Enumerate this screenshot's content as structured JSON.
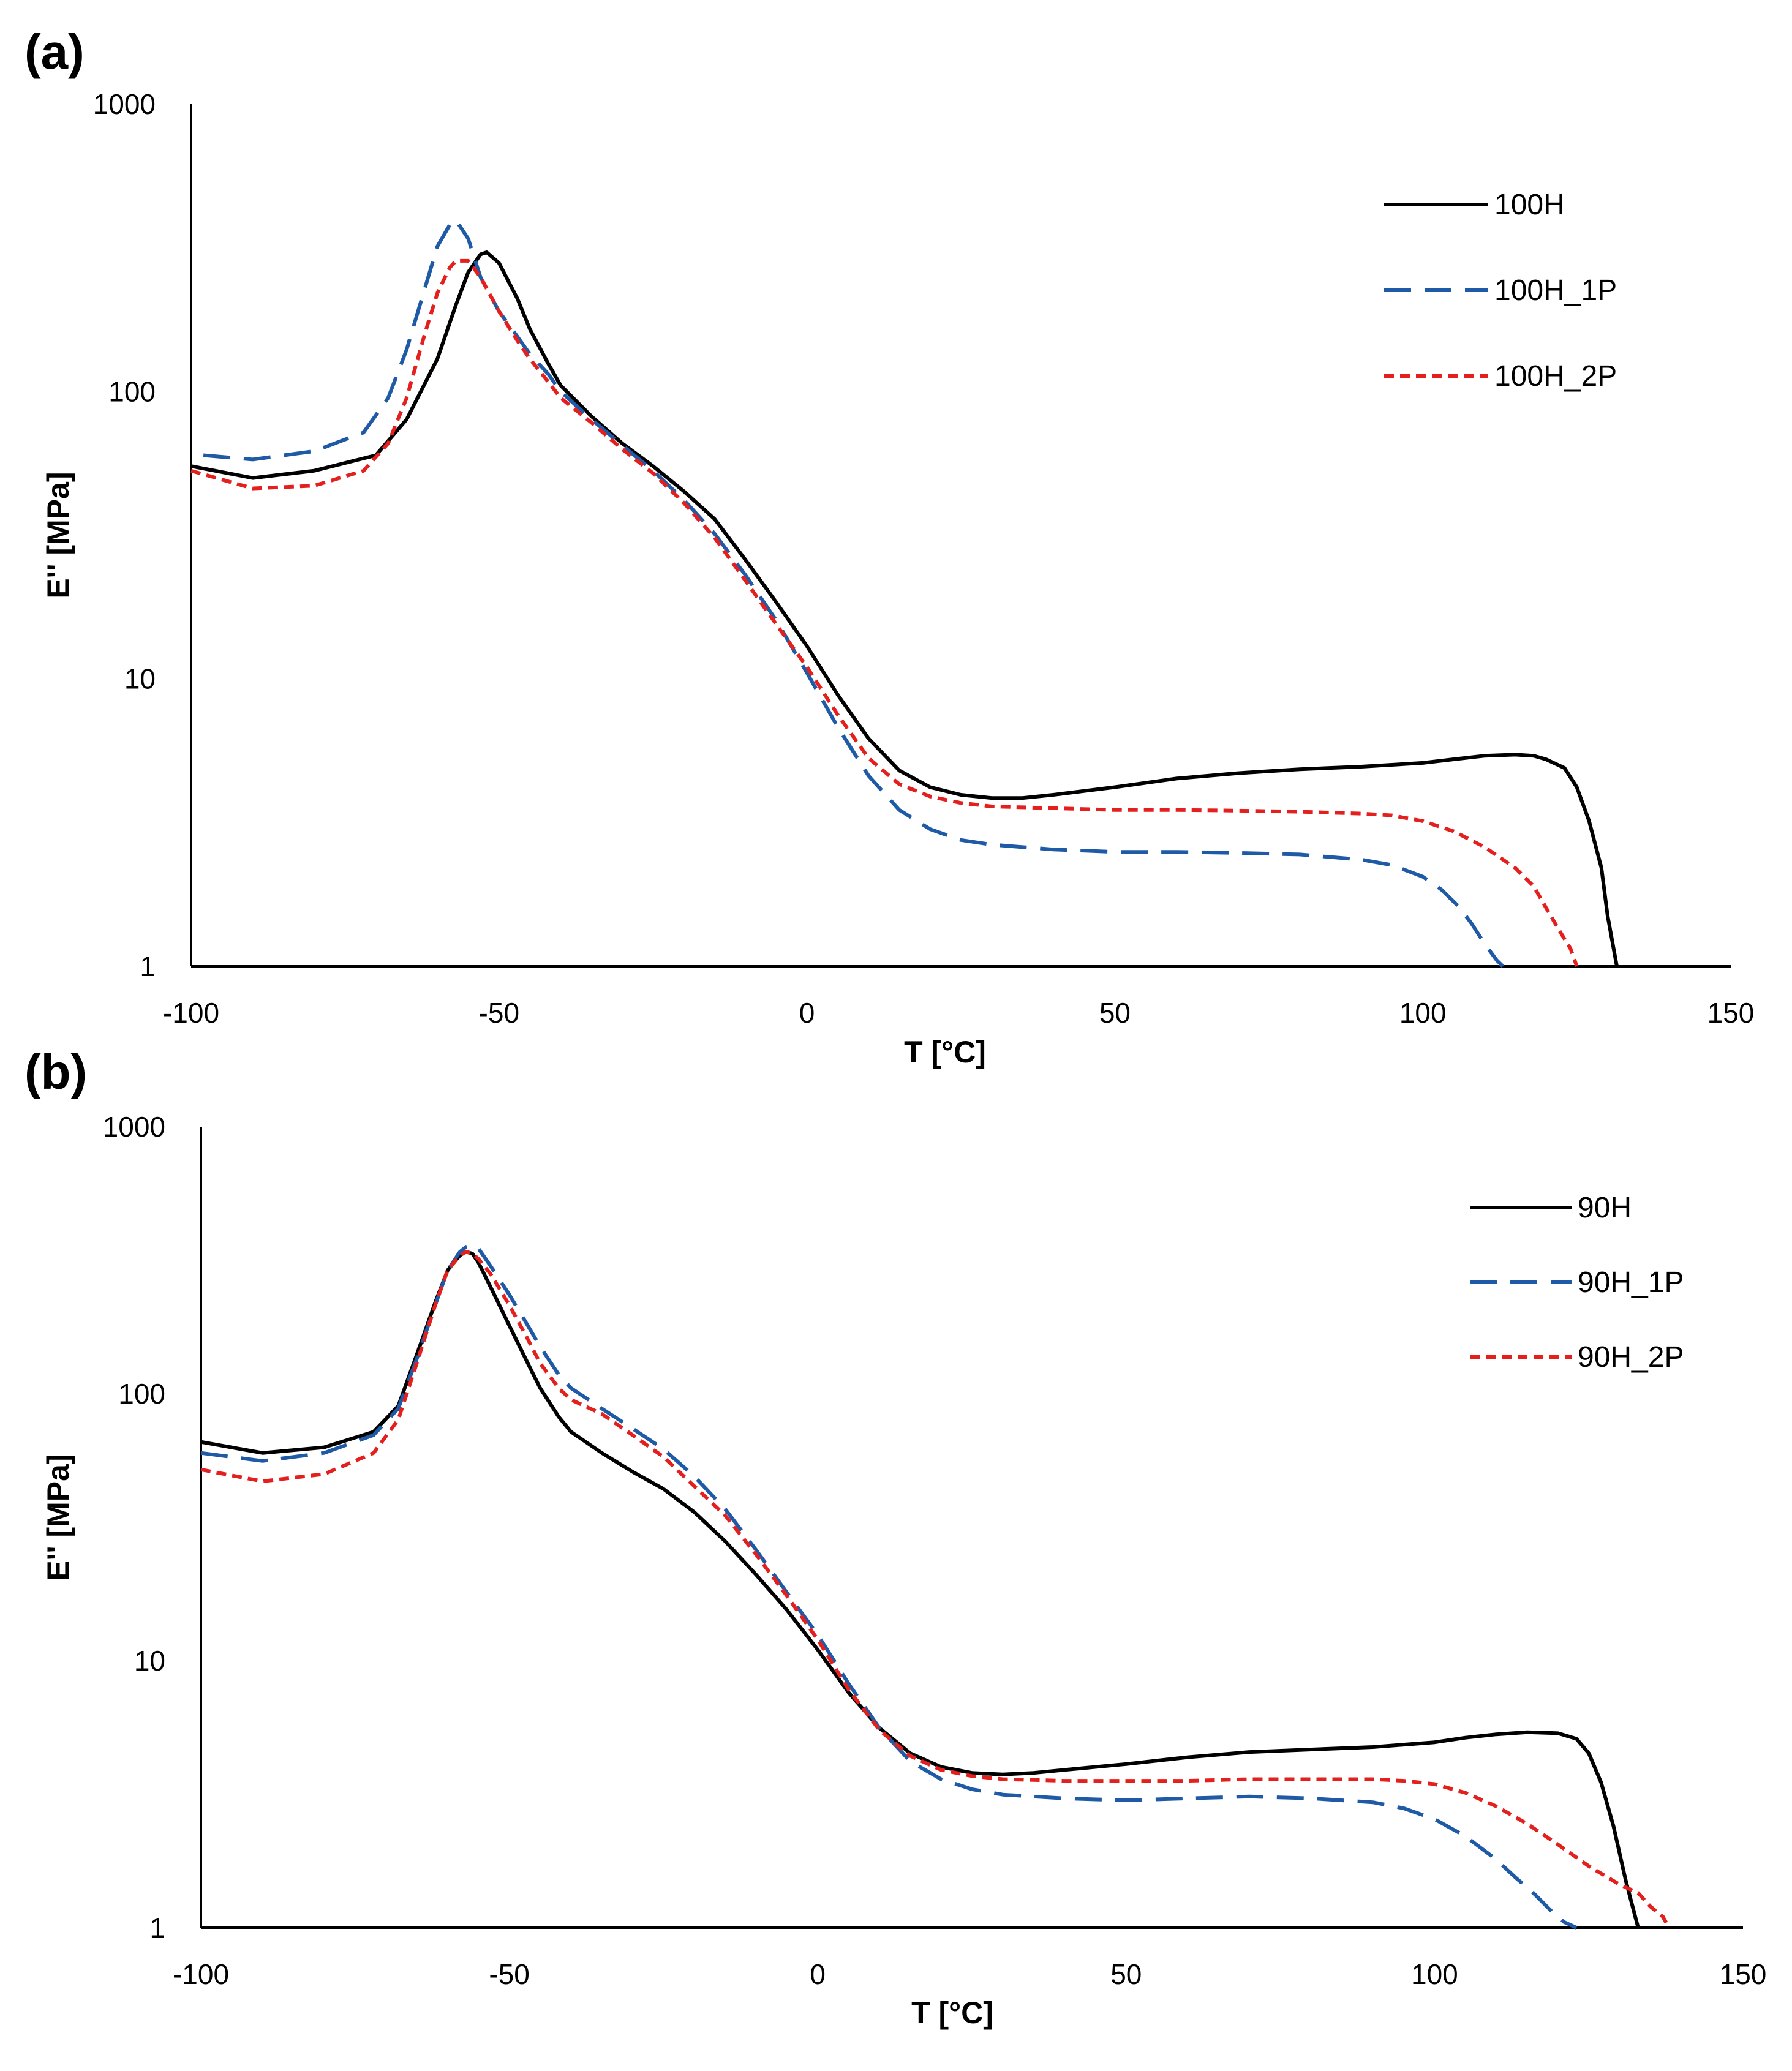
{
  "chart_data": [
    {
      "panel": "(a)",
      "type": "line",
      "xlabel": "T [°C]",
      "ylabel": "E'' [MPa]",
      "xlim": [
        -100,
        150
      ],
      "ylim": [
        1,
        1000
      ],
      "yscale": "log",
      "xticks": [
        -100,
        -50,
        0,
        50,
        100,
        150
      ],
      "yticks": [
        1,
        10,
        100,
        1000
      ],
      "xtick_labels": [
        "-100",
        "-50",
        "0",
        "50",
        "100",
        "150"
      ],
      "ytick_labels": [
        "1",
        "10",
        "100",
        "1000"
      ],
      "legend_position": "top-right",
      "grid": false,
      "series": [
        {
          "name": "100H",
          "color": "#000000",
          "dash": "solid",
          "x": [
            -100,
            -90,
            -80,
            -70,
            -65,
            -60,
            -57,
            -55,
            -53,
            -52,
            -50,
            -47,
            -45,
            -42,
            -40,
            -35,
            -30,
            -25,
            -20,
            -15,
            -10,
            -5,
            0,
            5,
            10,
            15,
            20,
            25,
            30,
            35,
            40,
            50,
            60,
            70,
            80,
            90,
            100,
            105,
            110,
            115,
            118,
            120,
            123,
            125,
            127,
            129,
            130,
            131.5
          ],
          "y": [
            55,
            50,
            53,
            60,
            80,
            130,
            200,
            260,
            300,
            305,
            280,
            210,
            165,
            125,
            105,
            82,
            66,
            55,
            45,
            36,
            26,
            18.5,
            13,
            8.8,
            6.2,
            4.8,
            4.2,
            3.95,
            3.85,
            3.85,
            3.95,
            4.2,
            4.5,
            4.7,
            4.85,
            4.95,
            5.1,
            5.25,
            5.4,
            5.45,
            5.4,
            5.25,
            4.9,
            4.2,
            3.2,
            2.2,
            1.5,
            1.0
          ]
        },
        {
          "name": "100H_1P",
          "color": "#1f5aa6",
          "dash": "long-dash",
          "x": [
            -98,
            -90,
            -80,
            -72,
            -68,
            -65,
            -62,
            -60,
            -58,
            -57,
            -55,
            -53,
            -50,
            -47,
            -45,
            -42,
            -40,
            -35,
            -30,
            -25,
            -20,
            -15,
            -10,
            -5,
            0,
            5,
            10,
            15,
            20,
            25,
            30,
            40,
            50,
            60,
            70,
            80,
            90,
            95,
            100,
            103,
            106,
            108,
            110,
            112,
            113
          ],
          "y": [
            60,
            58,
            62,
            72,
            95,
            140,
            230,
            320,
            380,
            395,
            340,
            250,
            190,
            155,
            135,
            115,
            100,
            80,
            65,
            53,
            42,
            32,
            23,
            16,
            10.5,
            6.8,
            4.6,
            3.5,
            3.0,
            2.75,
            2.65,
            2.55,
            2.5,
            2.5,
            2.48,
            2.45,
            2.35,
            2.25,
            2.05,
            1.85,
            1.6,
            1.4,
            1.2,
            1.05,
            1.0
          ]
        },
        {
          "name": "100H_2P",
          "color": "#e4201f",
          "dash": "short-dash",
          "x": [
            -100,
            -90,
            -80,
            -72,
            -68,
            -65,
            -62,
            -60,
            -58,
            -57,
            -55,
            -53,
            -50,
            -47,
            -45,
            -42,
            -40,
            -35,
            -30,
            -25,
            -20,
            -15,
            -10,
            -5,
            0,
            5,
            10,
            15,
            20,
            25,
            30,
            40,
            50,
            60,
            70,
            80,
            90,
            95,
            100,
            105,
            110,
            115,
            118,
            120,
            122,
            124,
            125
          ],
          "y": [
            53,
            46,
            47,
            53,
            66,
            95,
            160,
            220,
            270,
            285,
            285,
            250,
            190,
            150,
            130,
            108,
            95,
            78,
            63,
            52,
            41,
            31,
            22,
            15.5,
            11,
            7.5,
            5.3,
            4.3,
            3.9,
            3.7,
            3.6,
            3.55,
            3.5,
            3.5,
            3.48,
            3.45,
            3.4,
            3.35,
            3.2,
            2.95,
            2.6,
            2.2,
            1.9,
            1.6,
            1.35,
            1.15,
            1.0
          ]
        }
      ]
    },
    {
      "panel": "(b)",
      "type": "line",
      "xlabel": "T [°C]",
      "ylabel": "E'' [MPa]",
      "xlim": [
        -100,
        150
      ],
      "ylim": [
        1,
        1000
      ],
      "yscale": "log",
      "xticks": [
        -100,
        -50,
        0,
        50,
        100,
        150
      ],
      "yticks": [
        1,
        10,
        100,
        1000
      ],
      "xtick_labels": [
        "-100",
        "-50",
        "0",
        "50",
        "100",
        "150"
      ],
      "ytick_labels": [
        "1",
        "10",
        "100",
        "1000"
      ],
      "legend_position": "top-right",
      "grid": false,
      "series": [
        {
          "name": "90H",
          "color": "#000000",
          "dash": "solid",
          "x": [
            -100,
            -90,
            -80,
            -72,
            -68,
            -65,
            -62,
            -60,
            -58,
            -57,
            -56,
            -55,
            -53,
            -50,
            -47,
            -45,
            -42,
            -40,
            -35,
            -30,
            -25,
            -20,
            -15,
            -10,
            -5,
            0,
            5,
            10,
            15,
            20,
            25,
            30,
            35,
            40,
            50,
            60,
            70,
            80,
            90,
            100,
            105,
            110,
            115,
            120,
            123,
            125,
            127,
            129,
            131,
            133
          ],
          "y": [
            66,
            60,
            63,
            72,
            90,
            140,
            220,
            290,
            330,
            340,
            335,
            310,
            250,
            180,
            130,
            105,
            82,
            72,
            60,
            51,
            44,
            36,
            28,
            21,
            15.5,
            11,
            7.6,
            5.6,
            4.5,
            4.0,
            3.8,
            3.75,
            3.8,
            3.9,
            4.1,
            4.35,
            4.55,
            4.65,
            4.75,
            4.95,
            5.15,
            5.3,
            5.4,
            5.35,
            5.1,
            4.5,
            3.5,
            2.4,
            1.5,
            1.0
          ]
        },
        {
          "name": "90H_1P",
          "color": "#1f5aa6",
          "dash": "long-dash",
          "x": [
            -100,
            -90,
            -80,
            -72,
            -68,
            -65,
            -62,
            -60,
            -58,
            -57,
            -56,
            -55,
            -53,
            -50,
            -47,
            -45,
            -42,
            -40,
            -35,
            -30,
            -25,
            -20,
            -15,
            -10,
            -5,
            0,
            5,
            10,
            15,
            20,
            25,
            30,
            40,
            50,
            60,
            70,
            80,
            90,
            95,
            100,
            105,
            110,
            113,
            116,
            119,
            121,
            123
          ],
          "y": [
            60,
            56,
            60,
            70,
            88,
            135,
            215,
            290,
            340,
            355,
            360,
            350,
            300,
            235,
            180,
            150,
            118,
            105,
            88,
            74,
            62,
            49,
            37,
            26,
            18,
            12.5,
            8.2,
            5.6,
            4.2,
            3.6,
            3.3,
            3.15,
            3.05,
            3.0,
            3.05,
            3.1,
            3.05,
            2.95,
            2.8,
            2.55,
            2.2,
            1.8,
            1.55,
            1.35,
            1.15,
            1.05,
            1.0
          ]
        },
        {
          "name": "90H_2P",
          "color": "#e4201f",
          "dash": "short-dash",
          "x": [
            -100,
            -90,
            -80,
            -72,
            -68,
            -65,
            -62,
            -60,
            -58,
            -57,
            -56,
            -55,
            -53,
            -50,
            -47,
            -45,
            -42,
            -40,
            -35,
            -30,
            -25,
            -20,
            -15,
            -10,
            -5,
            0,
            5,
            10,
            15,
            20,
            25,
            30,
            40,
            50,
            60,
            70,
            80,
            90,
            95,
            100,
            105,
            110,
            115,
            120,
            125,
            130,
            133,
            135,
            137,
            138
          ],
          "y": [
            52,
            47,
            50,
            60,
            80,
            130,
            215,
            290,
            330,
            340,
            335,
            320,
            280,
            215,
            160,
            130,
            105,
            95,
            84,
            70,
            58,
            45,
            35,
            25,
            17.5,
            12,
            7.8,
            5.5,
            4.4,
            3.9,
            3.7,
            3.6,
            3.55,
            3.55,
            3.55,
            3.6,
            3.6,
            3.6,
            3.55,
            3.45,
            3.2,
            2.85,
            2.45,
            2.05,
            1.7,
            1.45,
            1.35,
            1.2,
            1.1,
            1.0
          ]
        }
      ]
    }
  ]
}
